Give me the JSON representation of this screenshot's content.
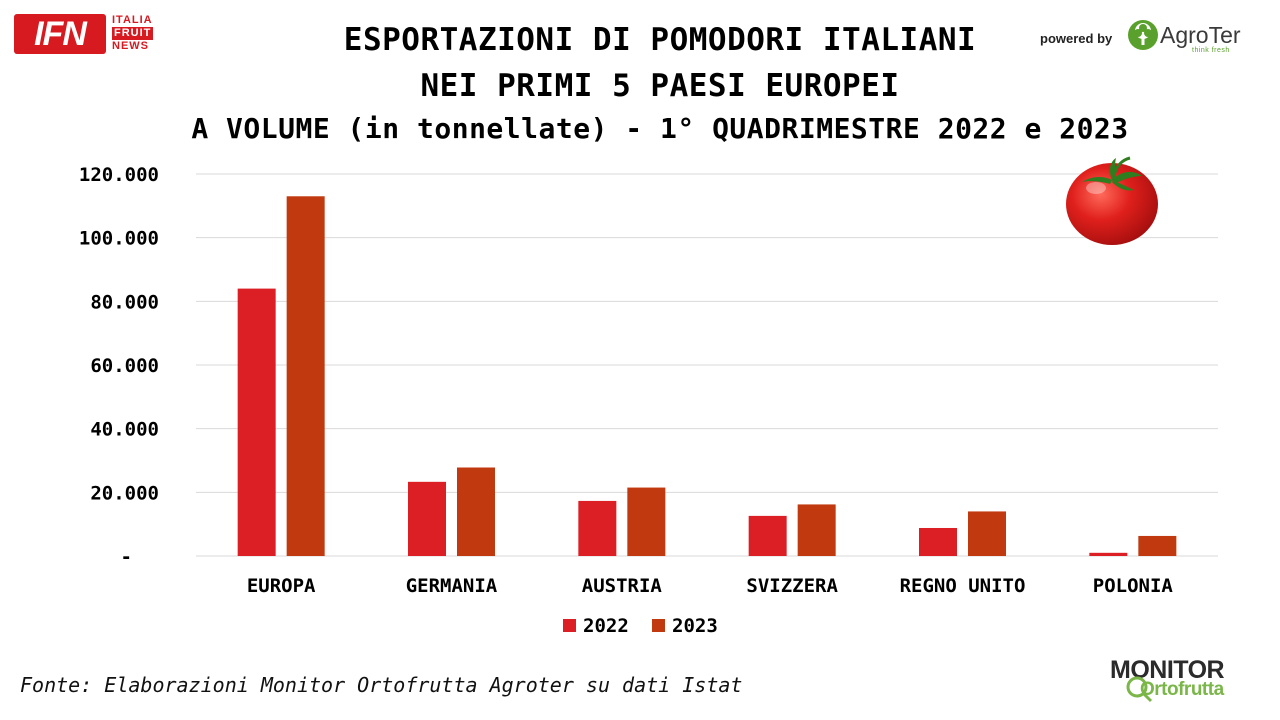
{
  "branding": {
    "ifn_main": "IFN",
    "ifn_lines": [
      "ITALIA",
      "FRUIT",
      "NEWS"
    ],
    "powered_by": "powered by",
    "agroter": "AgroTer",
    "agroter_tag": "think fresh",
    "monitor": "MONITOR",
    "ortofrutta": "Ortofrutta"
  },
  "source": "Fonte: Elaborazioni Monitor Ortofrutta Agroter su dati Istat",
  "colors": {
    "series_2022": "#dc1f25",
    "series_2023": "#c0390f",
    "grid": "#d9d9d9",
    "brand_red": "#d71920",
    "brand_green": "#5aa02c"
  },
  "icons": [
    "tomato-icon",
    "agroter-tree-icon",
    "magnifier-icon"
  ],
  "chart_data": {
    "type": "bar",
    "title": "ESPORTAZIONI DI POMODORI ITALIANI",
    "title_line2": "NEI PRIMI 5 PAESI EUROPEI",
    "subtitle": "A VOLUME (in tonnellate) - 1° QUADRIMESTRE 2022 e 2023",
    "categories": [
      "EUROPA",
      "GERMANIA",
      "AUSTRIA",
      "SVIZZERA",
      "REGNO UNITO",
      "POLONIA"
    ],
    "series": [
      {
        "name": "2022",
        "values": [
          84000,
          23300,
          17300,
          12600,
          8800,
          1000
        ]
      },
      {
        "name": "2023",
        "values": [
          113000,
          27800,
          21500,
          16200,
          14000,
          6300
        ]
      }
    ],
    "ylim": [
      0,
      120000
    ],
    "yticks": [
      0,
      20000,
      40000,
      60000,
      80000,
      100000,
      120000
    ],
    "ytick_labels": [
      "-",
      "20.000",
      "40.000",
      "60.000",
      "80.000",
      "100.000",
      "120.000"
    ],
    "xlabel": "",
    "ylabel": "",
    "grid": true,
    "legend_position": "bottom"
  }
}
